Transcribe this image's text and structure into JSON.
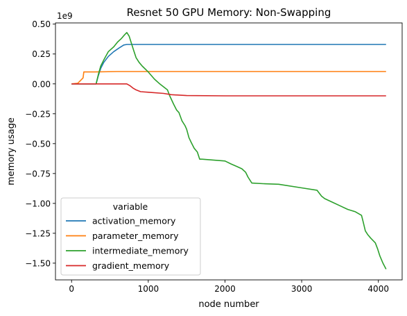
{
  "chart_data": {
    "type": "line",
    "title": "Resnet 50 GPU Memory: Non-Swapping",
    "xlabel": "node number",
    "ylabel": "memory usage",
    "y_offset_label": "1e9",
    "xlim": [
      -210,
      4310
    ],
    "ylim": [
      -1.64,
      0.51
    ],
    "x_ticks": [
      0,
      1000,
      2000,
      3000,
      4000
    ],
    "x_tick_labels": [
      "0",
      "1000",
      "2000",
      "3000",
      "4000"
    ],
    "y_ticks": [
      0.5,
      0.25,
      0.0,
      -0.25,
      -0.5,
      -0.75,
      -1.0,
      -1.25,
      -1.5
    ],
    "y_tick_labels": [
      "0.50",
      "0.25",
      "0.00",
      "−0.25",
      "−0.50",
      "−0.75",
      "−1.00",
      "−1.25",
      "−1.50"
    ],
    "grid": false,
    "legend": {
      "title": "variable",
      "placement": "lower-left"
    },
    "series": [
      {
        "name": "activation_memory",
        "color": "#1f77b4",
        "points": [
          [
            0,
            0
          ],
          [
            320,
            0
          ],
          [
            350,
            0.07
          ],
          [
            380,
            0.13
          ],
          [
            420,
            0.18
          ],
          [
            480,
            0.23
          ],
          [
            550,
            0.27
          ],
          [
            620,
            0.3
          ],
          [
            680,
            0.325
          ],
          [
            720,
            0.33
          ],
          [
            4100,
            0.33
          ]
        ]
      },
      {
        "name": "parameter_memory",
        "color": "#ff7f0e",
        "points": [
          [
            0,
            0
          ],
          [
            80,
            0.005
          ],
          [
            120,
            0.03
          ],
          [
            150,
            0.05
          ],
          [
            160,
            0.1
          ],
          [
            300,
            0.1
          ],
          [
            600,
            0.103
          ],
          [
            4100,
            0.103
          ]
        ]
      },
      {
        "name": "intermediate_memory",
        "color": "#2ca02c",
        "points": [
          [
            0,
            0
          ],
          [
            320,
            0
          ],
          [
            350,
            0.08
          ],
          [
            380,
            0.15
          ],
          [
            420,
            0.2
          ],
          [
            480,
            0.27
          ],
          [
            550,
            0.31
          ],
          [
            600,
            0.35
          ],
          [
            650,
            0.38
          ],
          [
            690,
            0.41
          ],
          [
            720,
            0.43
          ],
          [
            750,
            0.4
          ],
          [
            780,
            0.34
          ],
          [
            810,
            0.28
          ],
          [
            840,
            0.22
          ],
          [
            880,
            0.18
          ],
          [
            920,
            0.15
          ],
          [
            1000,
            0.1
          ],
          [
            1080,
            0.04
          ],
          [
            1150,
            0.0
          ],
          [
            1250,
            -0.05
          ],
          [
            1280,
            -0.1
          ],
          [
            1330,
            -0.17
          ],
          [
            1370,
            -0.22
          ],
          [
            1400,
            -0.24
          ],
          [
            1440,
            -0.31
          ],
          [
            1480,
            -0.35
          ],
          [
            1500,
            -0.38
          ],
          [
            1530,
            -0.45
          ],
          [
            1560,
            -0.49
          ],
          [
            1600,
            -0.54
          ],
          [
            1640,
            -0.57
          ],
          [
            1670,
            -0.63
          ],
          [
            1700,
            -0.63
          ],
          [
            1900,
            -0.64
          ],
          [
            2000,
            -0.645
          ],
          [
            2080,
            -0.67
          ],
          [
            2150,
            -0.69
          ],
          [
            2220,
            -0.71
          ],
          [
            2270,
            -0.74
          ],
          [
            2300,
            -0.78
          ],
          [
            2350,
            -0.83
          ],
          [
            2500,
            -0.835
          ],
          [
            2700,
            -0.84
          ],
          [
            3000,
            -0.87
          ],
          [
            3200,
            -0.89
          ],
          [
            3260,
            -0.94
          ],
          [
            3300,
            -0.96
          ],
          [
            3400,
            -0.99
          ],
          [
            3500,
            -1.02
          ],
          [
            3600,
            -1.05
          ],
          [
            3700,
            -1.07
          ],
          [
            3780,
            -1.1
          ],
          [
            3800,
            -1.15
          ],
          [
            3830,
            -1.23
          ],
          [
            3860,
            -1.26
          ],
          [
            3900,
            -1.29
          ],
          [
            3960,
            -1.33
          ],
          [
            3990,
            -1.38
          ],
          [
            4020,
            -1.44
          ],
          [
            4060,
            -1.5
          ],
          [
            4100,
            -1.55
          ]
        ]
      },
      {
        "name": "gradient_memory",
        "color": "#d62728",
        "points": [
          [
            0,
            0
          ],
          [
            720,
            0
          ],
          [
            760,
            -0.015
          ],
          [
            800,
            -0.035
          ],
          [
            840,
            -0.05
          ],
          [
            900,
            -0.065
          ],
          [
            1000,
            -0.07
          ],
          [
            1200,
            -0.08
          ],
          [
            1300,
            -0.09
          ],
          [
            1500,
            -0.098
          ],
          [
            2000,
            -0.1
          ],
          [
            4100,
            -0.1
          ]
        ]
      }
    ]
  }
}
